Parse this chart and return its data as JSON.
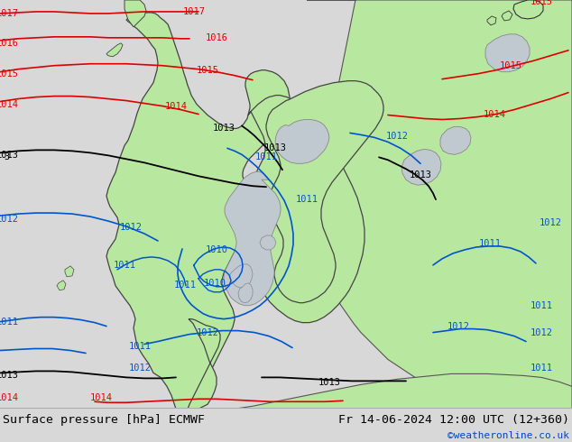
{
  "title_left": "Surface pressure [hPa] ECMWF",
  "title_right": "Fr 14-06-2024 12:00 UTC (12+360)",
  "credit": "©weatheronline.co.uk",
  "bg_color": "#d8d8d8",
  "land_color": "#b8e8a0",
  "sea_color": "#c8c8c8",
  "lake_color": "#c0c8d0",
  "footer_bg": "#d8d8d8",
  "red_line_color": "#dd0000",
  "blue_line_color": "#0055cc",
  "black_line_color": "#000000",
  "font_family": "monospace",
  "title_fontsize": 9.5,
  "credit_fontsize": 8,
  "label_fontsize": 7.5,
  "figsize": [
    6.34,
    4.9
  ],
  "dpi": 100
}
